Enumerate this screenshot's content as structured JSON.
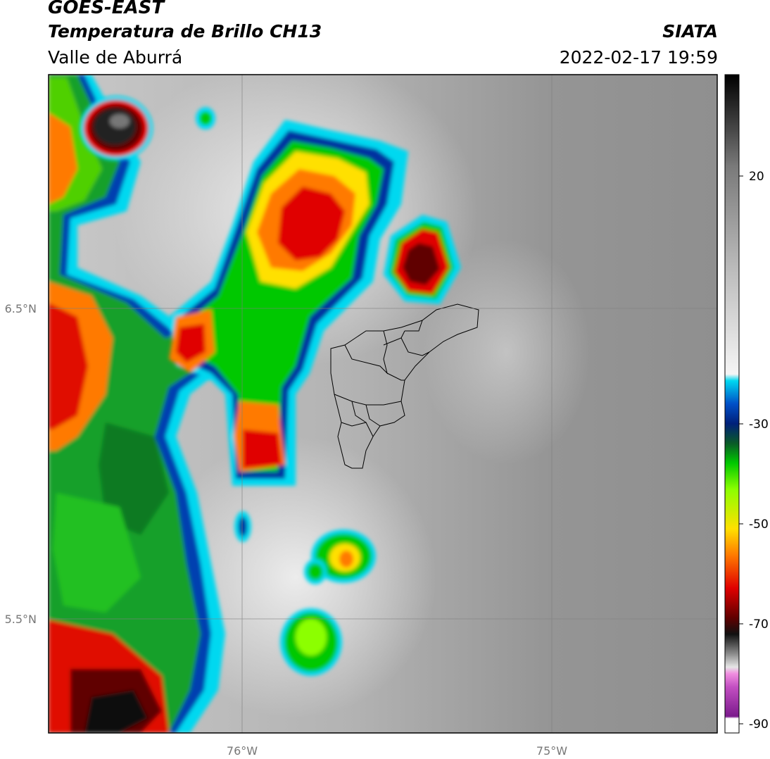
{
  "header": {
    "satellite": "GOES-EAST",
    "product": "Temperatura de Brillo CH13",
    "region": "Valle de Aburrá",
    "organization": "SIATA",
    "datetime": "2022-02-17 19:59"
  },
  "map": {
    "lon_ticks": [
      "76°W",
      "75°W"
    ],
    "lat_ticks": [
      "6.5°N",
      "5.5°N"
    ]
  },
  "colorbar": {
    "ticks": [
      "20",
      "-30",
      "-50",
      "-70",
      "-90"
    ]
  },
  "colors": {
    "cold_core": "#8b0000",
    "warm_background": "#9a9a9a",
    "boundary": "#000000"
  }
}
